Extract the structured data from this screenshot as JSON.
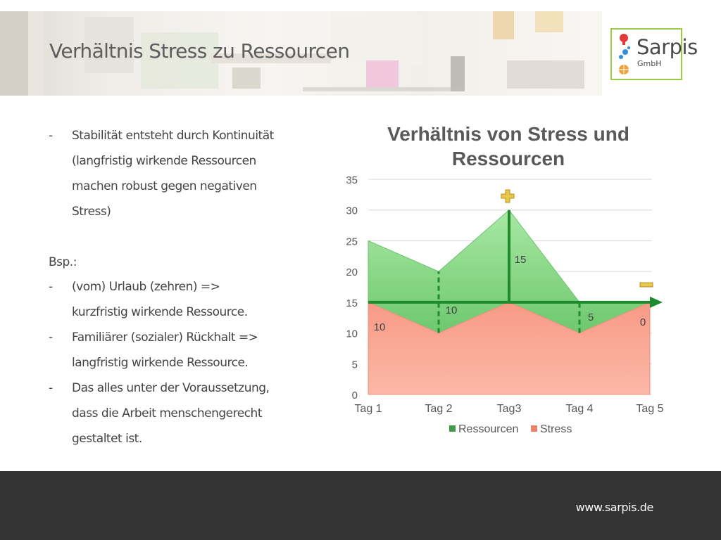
{
  "slide": {
    "title": "Verhältnis Stress zu Ressourcen"
  },
  "logo": {
    "name": "Sarpis",
    "sub": "GmbH",
    "accent": "#9acd44"
  },
  "content": {
    "intro": {
      "dash": "-",
      "lines": [
        "Stabilität entsteht durch Kontinuität",
        "(langfristig wirkende Ressourcen",
        "machen robust gegen negativen",
        "Stress)"
      ]
    },
    "example_label": "Bsp.:",
    "items": [
      {
        "dash": "-",
        "lines": [
          "(vom) Urlaub (zehren) =>",
          "kurzfristig wirkende Ressource."
        ]
      },
      {
        "dash": "-",
        "lines": [
          "Familiärer (sozialer) Rückhalt =>",
          "langfristig wirkende Ressource."
        ]
      },
      {
        "dash": "-",
        "lines": [
          "Das alles unter der Voraussetzung,",
          "dass die Arbeit menschengerecht",
          "gestaltet ist."
        ]
      }
    ]
  },
  "chart_data": {
    "type": "area",
    "title": "Verhältnis von Stress und Ressourcen",
    "title_lines": [
      "Verhältnis von Stress und",
      "Ressourcen"
    ],
    "categories": [
      "Tag 1",
      "Tag 2",
      "Tag3",
      "Tag 4",
      "Tag 5"
    ],
    "ylim": [
      0,
      35
    ],
    "yticks": [
      0,
      5,
      10,
      15,
      20,
      25,
      30,
      35
    ],
    "grid": true,
    "legend_position": "bottom",
    "series": [
      {
        "name": "Stress",
        "values": [
          15,
          10,
          15,
          10,
          15
        ],
        "color": "#f7a491"
      },
      {
        "name": "Ressourcen",
        "values": [
          25,
          20,
          30,
          15,
          15
        ],
        "color": "#8fd98c"
      }
    ],
    "legend": [
      {
        "name": "Ressourcen",
        "color": "#3f9b46"
      },
      {
        "name": "Stress",
        "color": "#e8836c"
      }
    ],
    "baseline": 15,
    "difference_labels": [
      {
        "category": "Tag 1",
        "text": "10"
      },
      {
        "category": "Tag 2",
        "text": "10"
      },
      {
        "category": "Tag3",
        "text": "15"
      },
      {
        "category": "Tag 4",
        "text": "5"
      },
      {
        "category": "Tag 5",
        "text": "0"
      }
    ],
    "markers": [
      {
        "category": "Tag 2",
        "style": "dashed",
        "from": 10,
        "to": 20
      },
      {
        "category": "Tag3",
        "style": "solid",
        "from": 15,
        "to": 30
      },
      {
        "category": "Tag 4",
        "style": "dashed",
        "from": 10,
        "to": 15
      }
    ],
    "annotation_symbols": [
      {
        "symbol": "plus",
        "category": "Tag3",
        "color": "#e8c84a"
      },
      {
        "symbol": "minus",
        "category": "Tag 5",
        "color": "#e8c84a"
      }
    ],
    "arrow_color": "#1e8a2e"
  },
  "footer": {
    "url": "www.sarpis.de"
  }
}
